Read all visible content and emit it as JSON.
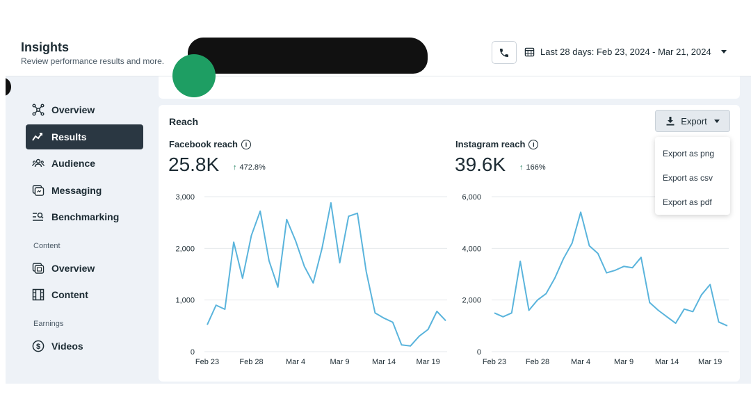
{
  "header": {
    "title": "Insights",
    "subtitle": "Review performance results and more.",
    "date_range": "Last 28 days: Feb 23, 2024 - Mar 21, 2024"
  },
  "sidebar": {
    "items": [
      {
        "label": "Overview",
        "icon": "overview-icon"
      },
      {
        "label": "Results",
        "icon": "results-icon",
        "active": true
      },
      {
        "label": "Audience",
        "icon": "audience-icon"
      },
      {
        "label": "Messaging",
        "icon": "messaging-icon"
      },
      {
        "label": "Benchmarking",
        "icon": "benchmarking-icon"
      }
    ],
    "content_label": "Content",
    "content_items": [
      {
        "label": "Overview",
        "icon": "content-overview-icon"
      },
      {
        "label": "Content",
        "icon": "content-icon"
      }
    ],
    "earnings_label": "Earnings",
    "earnings_items": [
      {
        "label": "Videos",
        "icon": "dollar-icon"
      }
    ]
  },
  "reach": {
    "title": "Reach",
    "export_label": "Export",
    "export_menu": [
      "Export as png",
      "Export as csv",
      "Export as pdf"
    ],
    "facebook": {
      "label": "Facebook reach",
      "value": "25.8K",
      "change": "472.8%"
    },
    "instagram": {
      "label": "Instagram reach",
      "value": "39.6K",
      "change": "166%"
    }
  },
  "colors": {
    "line": "#5ab4dc",
    "active_nav": "#2a3742",
    "up": "#1b7f5b"
  },
  "chart_data": [
    {
      "type": "line",
      "name": "Facebook reach",
      "x": [
        "Feb 23",
        "Feb 24",
        "Feb 25",
        "Feb 26",
        "Feb 27",
        "Feb 28",
        "Feb 29",
        "Mar 1",
        "Mar 2",
        "Mar 3",
        "Mar 4",
        "Mar 5",
        "Mar 6",
        "Mar 7",
        "Mar 8",
        "Mar 9",
        "Mar 10",
        "Mar 11",
        "Mar 12",
        "Mar 13",
        "Mar 14",
        "Mar 15",
        "Mar 16",
        "Mar 17",
        "Mar 18",
        "Mar 19",
        "Mar 20",
        "Mar 21"
      ],
      "y": [
        520,
        900,
        820,
        2120,
        1420,
        2250,
        2720,
        1760,
        1250,
        2560,
        2150,
        1650,
        1330,
        2000,
        2880,
        1720,
        2620,
        2680,
        1550,
        750,
        650,
        570,
        130,
        110,
        300,
        430,
        780,
        600
      ],
      "xticks": [
        "Feb 23",
        "Feb 28",
        "Mar 4",
        "Mar 9",
        "Mar 14",
        "Mar 19"
      ],
      "yticks": [
        0,
        1000,
        2000,
        3000
      ],
      "ytick_labels": [
        "0",
        "1,000",
        "2,000",
        "3,000"
      ],
      "ylim": [
        0,
        3000
      ]
    },
    {
      "type": "line",
      "name": "Instagram reach",
      "x": [
        "Feb 23",
        "Feb 24",
        "Feb 25",
        "Feb 26",
        "Feb 27",
        "Feb 28",
        "Feb 29",
        "Mar 1",
        "Mar 2",
        "Mar 3",
        "Mar 4",
        "Mar 5",
        "Mar 6",
        "Mar 7",
        "Mar 8",
        "Mar 9",
        "Mar 10",
        "Mar 11",
        "Mar 12",
        "Mar 13",
        "Mar 14",
        "Mar 15",
        "Mar 16",
        "Mar 17",
        "Mar 18",
        "Mar 19",
        "Mar 20",
        "Mar 21"
      ],
      "y": [
        1500,
        1350,
        1500,
        3500,
        1600,
        2000,
        2250,
        2850,
        3600,
        4200,
        5400,
        4100,
        3800,
        3050,
        3150,
        3300,
        3250,
        3650,
        1900,
        1600,
        1350,
        1100,
        1650,
        1550,
        2200,
        2600,
        1150,
        1000
      ],
      "xticks": [
        "Feb 23",
        "Feb 28",
        "Mar 4",
        "Mar 9",
        "Mar 14",
        "Mar 19"
      ],
      "yticks": [
        0,
        2000,
        4000,
        6000
      ],
      "ytick_labels": [
        "0",
        "2,000",
        "4,000",
        "6,000"
      ],
      "ylim": [
        0,
        6000
      ]
    }
  ]
}
